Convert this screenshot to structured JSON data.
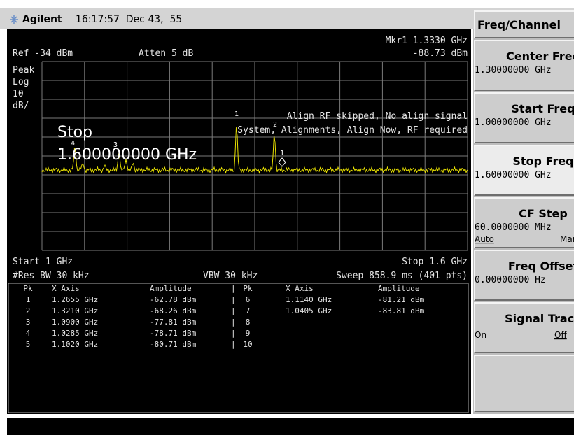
{
  "header": {
    "brand": "Agilent",
    "datetime": "16:17:57  Dec 43,  55"
  },
  "screen": {
    "marker": "Mkr1  1.3330 GHz",
    "marker_amplitude": "-88.73 dBm",
    "ref": "Ref -34 dBm",
    "atten": "Atten 5 dB",
    "scale": [
      "Peak",
      "Log",
      "10",
      "dB/"
    ],
    "active_function": {
      "label": "Stop",
      "value": "1.600000000 GHz"
    },
    "messages": [
      "Align RF skipped, No align signal",
      "System, Alignments, Align Now, RF required"
    ],
    "trace_labels": [
      "4",
      "3",
      "1",
      "2",
      "1"
    ],
    "start": "Start 1 GHz",
    "stop": "Stop 1.6 GHz",
    "rbw": "#Res BW 30 kHz",
    "vbw": "VBW 30 kHz",
    "sweep": "Sweep 858.9 ms (401 pts)"
  },
  "peak_table": {
    "columns": [
      "Pk",
      "X Axis",
      "Amplitude",
      "Pk",
      "X Axis",
      "Amplitude"
    ],
    "left_rows": [
      [
        "1",
        "1.2655 GHz",
        "-62.78 dBm"
      ],
      [
        "2",
        "1.3210 GHz",
        "-68.26 dBm"
      ],
      [
        "3",
        "1.0900 GHz",
        "-77.81 dBm"
      ],
      [
        "4",
        "1.0285 GHz",
        "-78.71 dBm"
      ],
      [
        "5",
        "1.1020 GHz",
        "-80.71 dBm"
      ]
    ],
    "right_rows": [
      [
        "6",
        "1.1140 GHz",
        "-81.21 dBm"
      ],
      [
        "7",
        "1.0405 GHz",
        "-83.81 dBm"
      ],
      [
        "8"
      ],
      [
        "9"
      ],
      [
        "10"
      ]
    ]
  },
  "softkeys": {
    "title": "Freq/Channel",
    "keys": [
      {
        "label": "Center Freq",
        "value": "1.30000000 GHz"
      },
      {
        "label": "Start Freq",
        "value": "1.00000000 GHz"
      },
      {
        "label": "Stop Freq",
        "value": "1.60000000 GHz"
      },
      {
        "label": "CF Step",
        "value": "60.0000000 MHz",
        "options": [
          "Auto",
          "Man"
        ]
      },
      {
        "label": "Freq Offset",
        "value": "0.00000000 Hz"
      },
      {
        "label": "Signal Track",
        "options": [
          "On",
          "Off"
        ]
      }
    ]
  }
}
